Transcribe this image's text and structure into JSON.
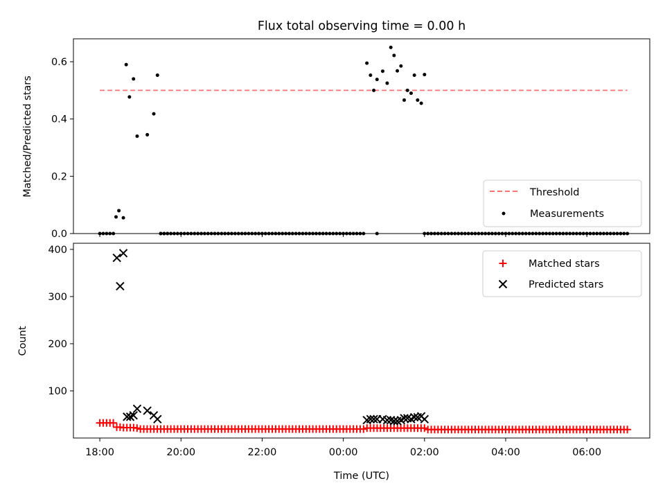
{
  "title": "Flux total observing time = 0.00 h",
  "colors": {
    "threshold": "#ff7070",
    "measurements": "#000000",
    "matched": "#ff0000",
    "predicted": "#000000"
  },
  "chart_data": [
    {
      "type": "scatter",
      "ylabel": "Matched/Predicted stars",
      "xlabel": "",
      "x_unit": "hours since 18:00 UTC",
      "xlim": [
        -0.65,
        13.55
      ],
      "ylim": [
        0,
        0.68
      ],
      "yticks": [
        0.0,
        0.2,
        0.4,
        0.6
      ],
      "ytick_labels": [
        "0.0",
        "0.2",
        "0.4",
        "0.6"
      ],
      "legend": {
        "placement": "lower right",
        "entries": [
          "Threshold",
          "Measurements"
        ]
      },
      "threshold": {
        "name": "Threshold",
        "value": 0.5,
        "x_range": [
          0.0,
          13.0
        ],
        "style": "dashed"
      },
      "measurements": {
        "name": "Measurements",
        "zero_runs": [
          [
            0.0,
            0.35,
            0.0833
          ],
          [
            1.5,
            1.67,
            0.0833
          ],
          [
            1.5,
            6.5,
            0.0833
          ],
          [
            6.83,
            6.83,
            0.0833
          ],
          [
            8.0,
            13.0,
            0.0833
          ]
        ],
        "points": [
          [
            0.4,
            0.058
          ],
          [
            0.47,
            0.08
          ],
          [
            0.58,
            0.055
          ],
          [
            0.65,
            0.59
          ],
          [
            0.73,
            0.477
          ],
          [
            0.83,
            0.54
          ],
          [
            0.92,
            0.34
          ],
          [
            1.17,
            0.345
          ],
          [
            1.33,
            0.418
          ],
          [
            1.42,
            0.553
          ],
          [
            6.58,
            0.595
          ],
          [
            6.67,
            0.553
          ],
          [
            6.75,
            0.5
          ],
          [
            6.83,
            0.538
          ],
          [
            6.97,
            0.567
          ],
          [
            7.08,
            0.525
          ],
          [
            7.17,
            0.65
          ],
          [
            7.25,
            0.622
          ],
          [
            7.33,
            0.568
          ],
          [
            7.42,
            0.585
          ],
          [
            7.5,
            0.466
          ],
          [
            7.58,
            0.5
          ],
          [
            7.67,
            0.49
          ],
          [
            7.75,
            0.553
          ],
          [
            7.83,
            0.466
          ],
          [
            7.92,
            0.455
          ],
          [
            8.0,
            0.555
          ]
        ]
      }
    },
    {
      "type": "scatter",
      "ylabel": "Count",
      "xlabel": "Time (UTC)",
      "x_unit": "hours since 18:00 UTC",
      "xlim": [
        -0.65,
        13.55
      ],
      "ylim": [
        0,
        413
      ],
      "yticks": [
        100,
        200,
        300,
        400
      ],
      "ytick_labels": [
        "100",
        "200",
        "300",
        "400"
      ],
      "xticks": [
        0,
        2,
        4,
        6,
        8,
        10,
        12
      ],
      "xtick_labels": [
        "18:00",
        "20:00",
        "22:00",
        "00:00",
        "02:00",
        "04:00",
        "06:00"
      ],
      "legend": {
        "placement": "upper right",
        "entries": [
          "Matched stars",
          "Predicted stars"
        ]
      },
      "matched": {
        "name": "Matched stars",
        "points": [
          [
            0.0,
            32
          ],
          [
            0.083,
            32
          ],
          [
            0.167,
            32
          ],
          [
            0.25,
            32
          ],
          [
            0.333,
            32
          ],
          [
            0.417,
            23
          ],
          [
            0.5,
            23
          ],
          [
            0.583,
            22
          ],
          [
            0.667,
            22
          ],
          [
            0.75,
            22
          ],
          [
            0.833,
            22
          ],
          [
            0.917,
            21
          ]
        ],
        "runs": [
          [
            1.0,
            6.5,
            0.0833,
            19
          ],
          [
            6.583,
            8.0,
            0.0833,
            21
          ],
          [
            8.083,
            13.0,
            0.0833,
            18
          ]
        ]
      },
      "predicted": {
        "name": "Predicted stars",
        "points": [
          [
            0.42,
            382
          ],
          [
            0.5,
            322
          ],
          [
            0.58,
            392
          ],
          [
            0.67,
            45
          ],
          [
            0.75,
            45
          ],
          [
            0.83,
            48
          ],
          [
            0.92,
            62
          ],
          [
            1.17,
            58
          ],
          [
            1.33,
            48
          ],
          [
            1.42,
            40
          ],
          [
            6.58,
            38
          ],
          [
            6.67,
            40
          ],
          [
            6.75,
            40
          ],
          [
            6.83,
            40
          ],
          [
            6.97,
            40
          ],
          [
            7.08,
            38
          ],
          [
            7.17,
            38
          ],
          [
            7.25,
            36
          ],
          [
            7.33,
            36
          ],
          [
            7.42,
            38
          ],
          [
            7.5,
            42
          ],
          [
            7.58,
            42
          ],
          [
            7.67,
            40
          ],
          [
            7.75,
            44
          ],
          [
            7.83,
            44
          ],
          [
            7.92,
            46
          ],
          [
            8.0,
            40
          ]
        ]
      }
    }
  ]
}
